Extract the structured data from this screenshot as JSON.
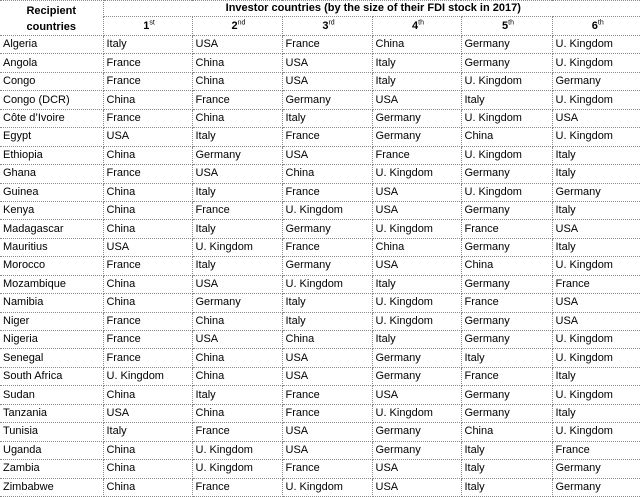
{
  "header": {
    "recipient_line1": "Recipient",
    "recipient_line2": "countries",
    "investor_group": "Investor countries (by the size of their FDI stock in 2017)",
    "ranks": [
      {
        "num": "1",
        "suffix": "st"
      },
      {
        "num": "2",
        "suffix": "nd"
      },
      {
        "num": "3",
        "suffix": "rd"
      },
      {
        "num": "4",
        "suffix": "th"
      },
      {
        "num": "5",
        "suffix": "th"
      },
      {
        "num": "6",
        "suffix": "th"
      }
    ]
  },
  "rows": [
    {
      "country": "Algeria",
      "investors": [
        "Italy",
        "USA",
        "France",
        "China",
        "Germany",
        "U. Kingdom"
      ]
    },
    {
      "country": "Angola",
      "investors": [
        "France",
        "China",
        "USA",
        "Italy",
        "Germany",
        "U. Kingdom"
      ]
    },
    {
      "country": "Congo",
      "investors": [
        "France",
        "China",
        "USA",
        "Italy",
        "U. Kingdom",
        "Germany"
      ]
    },
    {
      "country": "Congo (DCR)",
      "investors": [
        "China",
        "France",
        "Germany",
        "USA",
        "Italy",
        "U. Kingdom"
      ]
    },
    {
      "country": "Côte d’Ivoire",
      "investors": [
        "France",
        "China",
        "Italy",
        "Germany",
        "U. Kingdom",
        "USA"
      ]
    },
    {
      "country": "Egypt",
      "investors": [
        "USA",
        "Italy",
        "France",
        "Germany",
        "China",
        "U. Kingdom"
      ]
    },
    {
      "country": "Ethiopia",
      "investors": [
        "China",
        "Germany",
        "USA",
        "France",
        "U. Kingdom",
        "Italy"
      ]
    },
    {
      "country": "Ghana",
      "investors": [
        "France",
        "USA",
        "China",
        "U. Kingdom",
        "Germany",
        "Italy"
      ]
    },
    {
      "country": "Guinea",
      "investors": [
        "China",
        "Italy",
        "France",
        "USA",
        "U. Kingdom",
        "Germany"
      ]
    },
    {
      "country": "Kenya",
      "investors": [
        "China",
        "France",
        "U. Kingdom",
        "USA",
        "Germany",
        "Italy"
      ]
    },
    {
      "country": "Madagascar",
      "investors": [
        "China",
        "Italy",
        "Germany",
        "U. Kingdom",
        "France",
        "USA"
      ]
    },
    {
      "country": "Mauritius",
      "investors": [
        "USA",
        "U. Kingdom",
        "France",
        "China",
        "Germany",
        "Italy"
      ]
    },
    {
      "country": "Morocco",
      "investors": [
        "France",
        "Italy",
        "Germany",
        "USA",
        "China",
        "U. Kingdom"
      ]
    },
    {
      "country": "Mozambique",
      "investors": [
        "China",
        "USA",
        "U. Kingdom",
        "Italy",
        "Germany",
        "France"
      ]
    },
    {
      "country": "Namibia",
      "investors": [
        "China",
        "Germany",
        "Italy",
        "U. Kingdom",
        "France",
        "USA"
      ]
    },
    {
      "country": "Niger",
      "investors": [
        "France",
        "China",
        "Italy",
        "U. Kingdom",
        "Germany",
        "USA"
      ]
    },
    {
      "country": "Nigeria",
      "investors": [
        "France",
        "USA",
        "China",
        "Italy",
        "Germany",
        "U. Kingdom"
      ]
    },
    {
      "country": "Senegal",
      "investors": [
        "France",
        "China",
        "USA",
        "Germany",
        "Italy",
        "U. Kingdom"
      ]
    },
    {
      "country": "South Africa",
      "investors": [
        "U. Kingdom",
        "China",
        "USA",
        "Germany",
        "France",
        "Italy"
      ]
    },
    {
      "country": "Sudan",
      "investors": [
        "China",
        "Italy",
        "France",
        "USA",
        "Germany",
        "U. Kingdom"
      ]
    },
    {
      "country": "Tanzania",
      "investors": [
        "USA",
        "China",
        "France",
        "U. Kingdom",
        "Germany",
        "Italy"
      ]
    },
    {
      "country": "Tunisia",
      "investors": [
        "Italy",
        "France",
        "USA",
        "Germany",
        "China",
        "U. Kingdom"
      ]
    },
    {
      "country": "Uganda",
      "investors": [
        "China",
        "U. Kingdom",
        "USA",
        "Germany",
        "Italy",
        "France"
      ]
    },
    {
      "country": "Zambia",
      "investors": [
        "China",
        "U. Kingdom",
        "France",
        "USA",
        "Italy",
        "Germany"
      ]
    },
    {
      "country": "Zimbabwe",
      "investors": [
        "China",
        "France",
        "U. Kingdom",
        "USA",
        "Italy",
        "Germany"
      ]
    }
  ]
}
